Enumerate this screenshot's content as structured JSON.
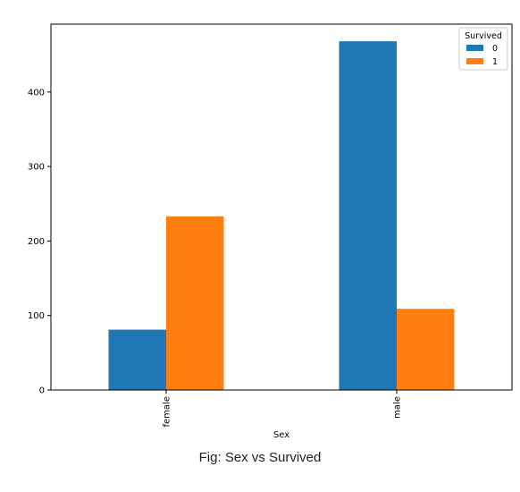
{
  "chart_data": {
    "type": "bar",
    "xlabel": "Sex",
    "ylabel": "",
    "categories": [
      "female",
      "male"
    ],
    "series": [
      {
        "name": "0",
        "values": [
          81,
          468
        ],
        "color": "#1f77b4"
      },
      {
        "name": "1",
        "values": [
          233,
          109
        ],
        "color": "#ff7f0e"
      }
    ],
    "ylim": [
      0,
      491
    ],
    "yticks": [
      0,
      100,
      200,
      300,
      400
    ],
    "legend": {
      "title": "Survived",
      "placement": "top-right"
    },
    "grid": false
  },
  "caption": "Fig: Sex vs Survived"
}
